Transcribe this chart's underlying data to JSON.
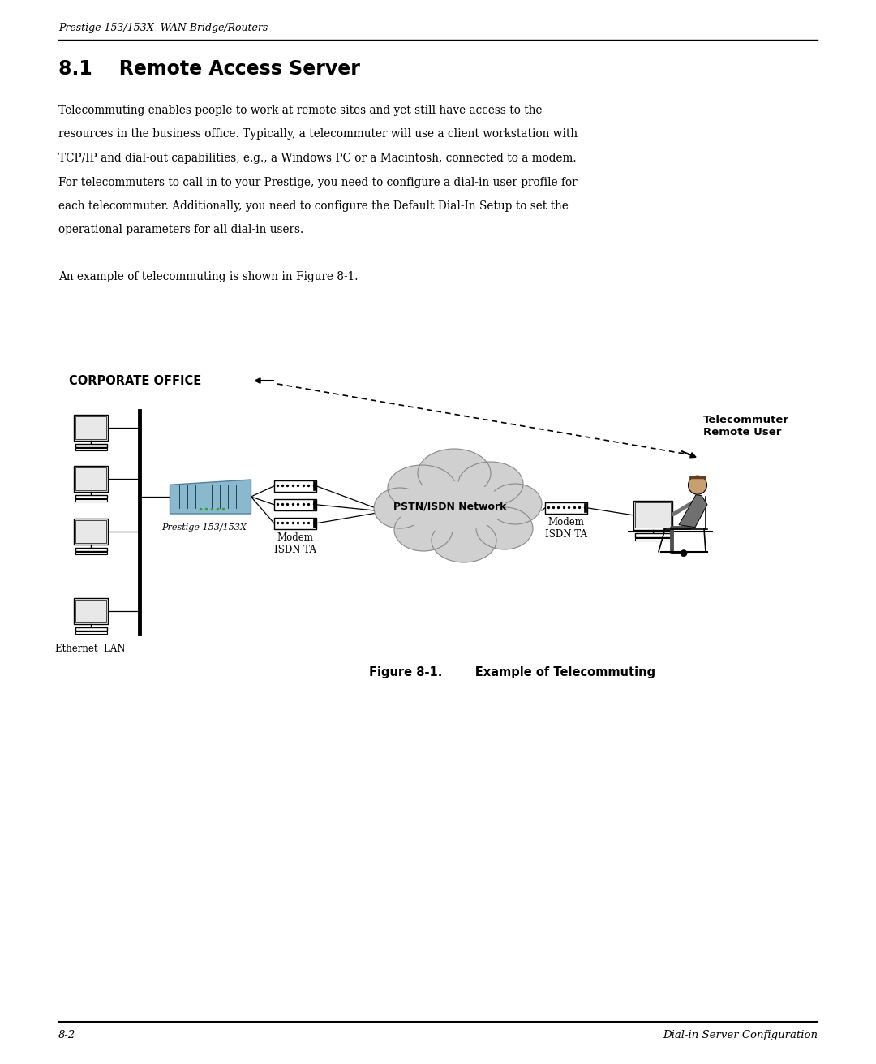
{
  "bg_color": "#ffffff",
  "page_width": 10.8,
  "page_height": 13.11,
  "header_text": "Prestige 153/153X  WAN Bridge/Routers",
  "section_title": "8.1    Remote Access Server",
  "body_text": [
    "Telecommuting enables people to work at remote sites and yet still have access to the",
    "resources in the business office. Typically, a telecommuter will use a client workstation with",
    "TCP/IP and dial-out capabilities, e.g., a Windows PC or a Macintosh, connected to a modem.",
    "For telecommuters to call in to your Prestige, you need to configure a dial-in user profile for",
    "each telecommuter. Additionally, you need to configure the Default Dial-In Setup to set the",
    "operational parameters for all dial-in users."
  ],
  "body_text2": "An example of telecommuting is shown in Figure 8-1.",
  "corporate_office_label": "CORPORATE OFFICE",
  "telecommuter_label": "Telecommuter\nRemote User",
  "pstn_label": "PSTN/ISDN Network",
  "prestige_label": "Prestige 153/153X",
  "modem_label_left": "Modem\nISDN TA",
  "modem_label_right": "Modem\nISDN TA",
  "ethernet_label": "Ethernet  LAN",
  "figure_caption_bold": "Figure 8-1.",
  "figure_caption_rest": "      Example of Telecommuting",
  "footer_left": "8-2",
  "footer_right": "Dial-in Server Configuration",
  "text_color": "#000000",
  "line_color": "#000000",
  "router_color": "#8ab8cc",
  "cloud_color": "#d0d0d0"
}
